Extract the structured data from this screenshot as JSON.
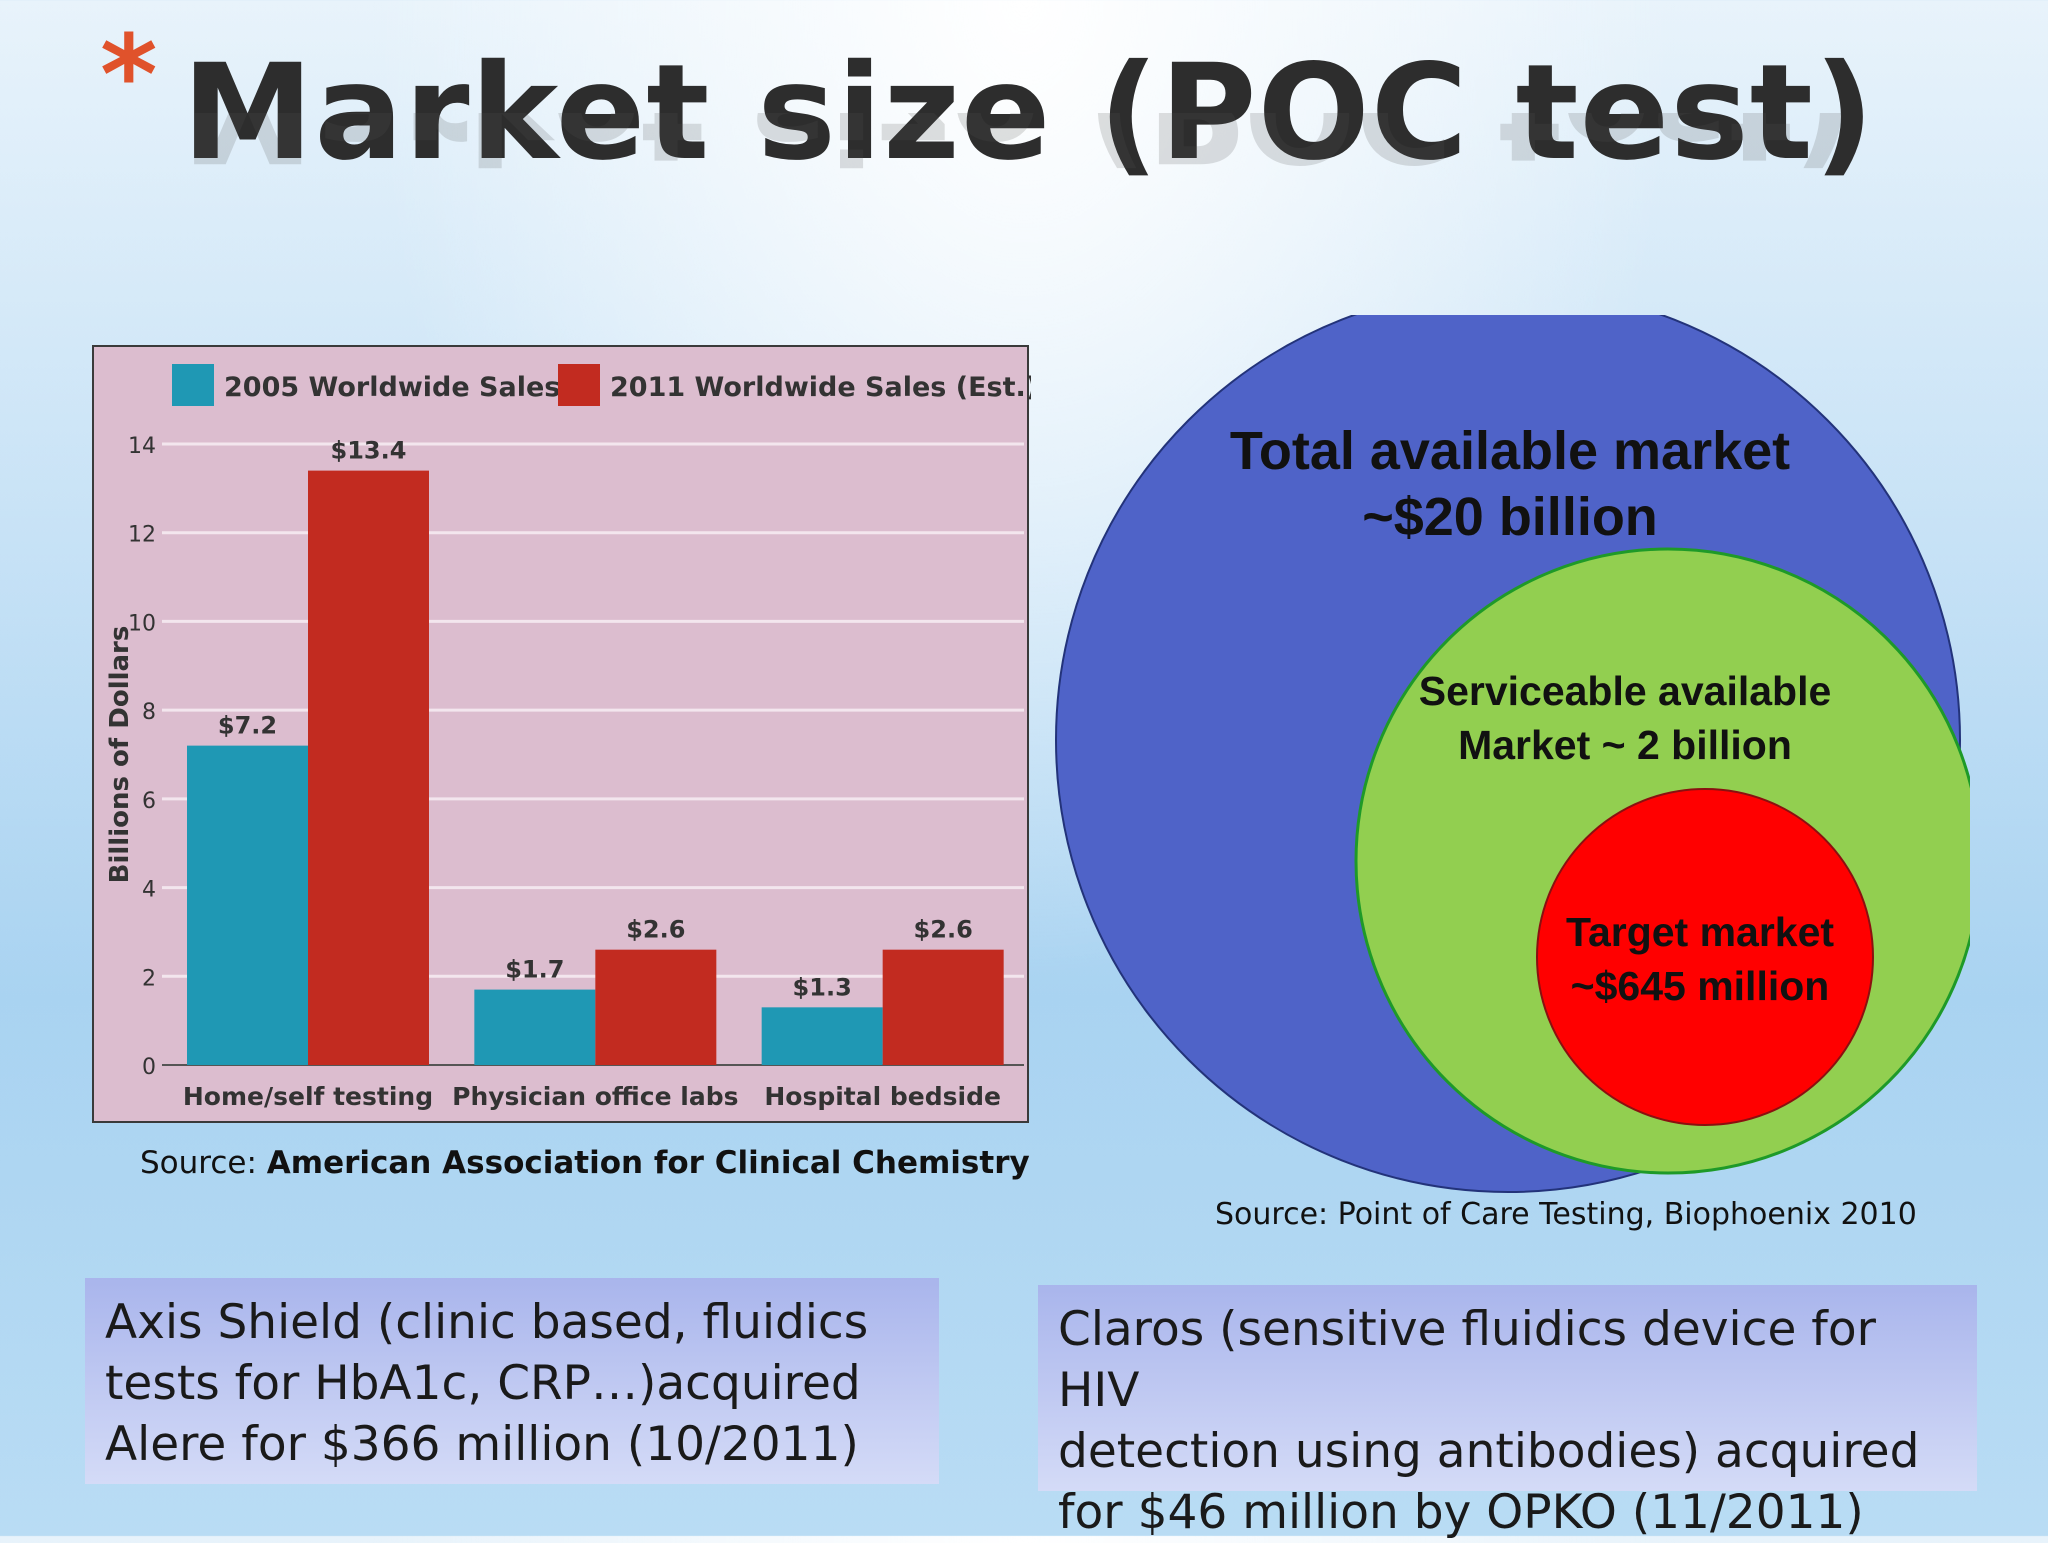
{
  "slide": {
    "title_mark": "*",
    "title": "Market size (POC test)"
  },
  "chart_data": {
    "type": "bar",
    "categories": [
      "Home/self testing",
      "Physician office labs",
      "Hospital bedside"
    ],
    "series": [
      {
        "name": "2005 Worldwide Sales",
        "values": [
          7.2,
          1.7,
          1.3
        ],
        "labels": [
          "$7.2",
          "$1.7",
          "$1.3"
        ],
        "color": "#1f98b4"
      },
      {
        "name": "2011 Worldwide Sales (Est.)",
        "values": [
          13.4,
          2.6,
          2.6
        ],
        "labels": [
          "$13.4",
          "$2.6",
          "$2.6"
        ],
        "color": "#c22b20"
      }
    ],
    "ylabel": "Billions of Dollars",
    "ylim": [
      0,
      14
    ],
    "yticks": [
      "0",
      "2",
      "4",
      "6",
      "8",
      "10",
      "12",
      "14"
    ],
    "grid": true,
    "legend": "top",
    "background": "#dcbdcf"
  },
  "chart_source": {
    "prefix": "Source: ",
    "name": "American Association for Clinical Chemistry"
  },
  "market": {
    "tam_line1": "Total available market",
    "tam_line2": "~$20 billion",
    "sam_line1": "Serviceable available",
    "sam_line2": "Market ~ 2 billion",
    "target_line1": "Target market",
    "target_line2": "~$645 million",
    "colors": {
      "tam": "#4f63c8",
      "sam": "#92cf50",
      "target": "#ff0000"
    },
    "source": "Source: Point of Care Testing, Biophoenix 2010"
  },
  "notes": {
    "left": [
      "Axis Shield (clinic based, fluidics",
      "tests for HbA1c, CRP…)acquired",
      "Alere for $366 million (10/2011)"
    ],
    "right": [
      "Claros (sensitive fluidics device for HIV",
      "detection using antibodies) acquired",
      "for $46 million by OPKO (11/2011)"
    ]
  }
}
